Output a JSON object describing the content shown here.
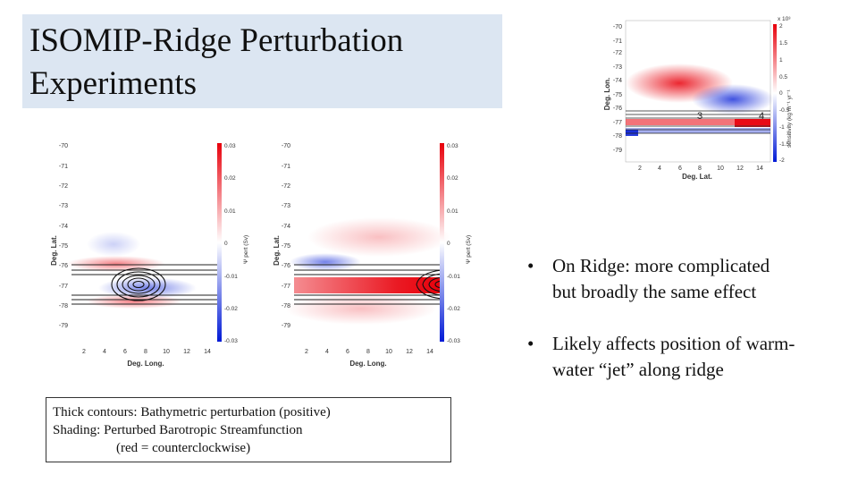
{
  "slide": {
    "title_line1": "ISOMIP-Ridge Perturbation",
    "title_line2": "Experiments"
  },
  "bullets": [
    {
      "line1": "On Ridge: more complicated",
      "line2": "but broadly the same effect"
    },
    {
      "line1": "Likely affects position of warm-",
      "line2": "water “jet” along ridge"
    }
  ],
  "caption": {
    "line1": "Thick contours: Bathymetric perturbation (positive)",
    "line2": "Shading: Perturbed Barotropic Streamfunction",
    "line3": "(red = counterclockwise)"
  },
  "plots": {
    "left_bottom": {
      "xlabel": "Deg. Long.",
      "ylabel": "Deg. Lat.",
      "yticks": [
        "-70",
        "-71",
        "-72",
        "-73",
        "-74",
        "-75",
        "-76",
        "-77",
        "-78",
        "-79"
      ],
      "xticks": [
        "2",
        "4",
        "6",
        "8",
        "10",
        "12",
        "14"
      ],
      "cbticks": [
        "0.03",
        "0.02",
        "0.01",
        "0",
        "-0.01",
        "-0.02",
        "-0.03"
      ],
      "cblabel": "Ψ pert (Sv)"
    },
    "right_bottom": {
      "xlabel": "Deg. Long.",
      "ylabel": "Deg. Lat.",
      "yticks": [
        "-70",
        "-71",
        "-72",
        "-73",
        "-74",
        "-75",
        "-76",
        "-77",
        "-78",
        "-79"
      ],
      "xticks": [
        "2",
        "4",
        "6",
        "8",
        "10",
        "12",
        "14"
      ],
      "cbticks": [
        "0.03",
        "0.02",
        "0.01",
        "0",
        "-0.01",
        "-0.02",
        "-0.03"
      ],
      "cblabel": "Ψ pert (Sv)"
    },
    "top_right": {
      "xlabel": "Deg. Lat.",
      "ylabel": "Deg. Lon.",
      "yticks": [
        "-70",
        "-71",
        "-72",
        "-73",
        "-74",
        "-75",
        "-76",
        "-77",
        "-78",
        "-79"
      ],
      "xticks": [
        "2",
        "4",
        "6",
        "8",
        "10",
        "12",
        "14"
      ],
      "cbticks": [
        "2",
        "1.5",
        "1",
        "0.5",
        "0",
        "-0.5",
        "-1",
        "-1.5",
        "-2"
      ],
      "cbexp": "x 10³",
      "cblabel": "sensitivity (kg m⁻¹ yr⁻¹",
      "marker_a": "3",
      "marker_b": "4"
    }
  },
  "colors": {
    "title_bg": "#dce6f2",
    "positive": "#e8000b",
    "negative": "#0019d6"
  }
}
